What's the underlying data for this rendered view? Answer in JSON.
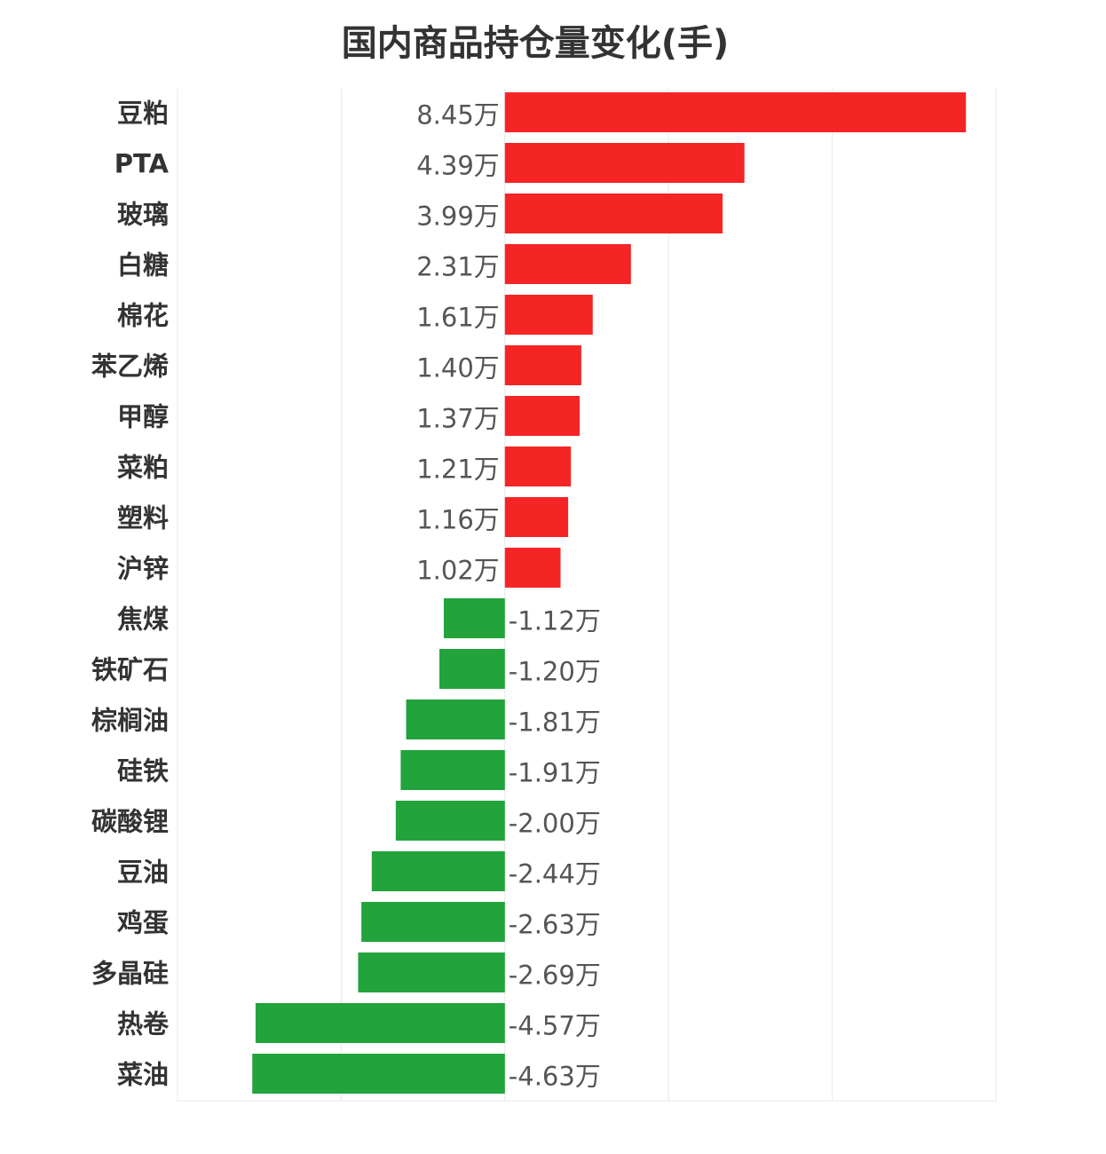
{
  "chart_data": {
    "type": "bar",
    "orientation": "horizontal",
    "title": "国内商品持仓量变化(手)",
    "unit": "万",
    "categories": [
      "豆粕",
      "PTA",
      "玻璃",
      "白糖",
      "棉花",
      "苯乙烯",
      "甲醇",
      "菜粕",
      "塑料",
      "沪锌",
      "焦煤",
      "铁矿石",
      "棕榈油",
      "硅铁",
      "碳酸锂",
      "豆油",
      "鸡蛋",
      "多晶硅",
      "热卷",
      "菜油"
    ],
    "values": [
      8.45,
      4.39,
      3.99,
      2.31,
      1.61,
      1.4,
      1.37,
      1.21,
      1.16,
      1.02,
      -1.12,
      -1.2,
      -1.81,
      -1.91,
      -2.0,
      -2.44,
      -2.63,
      -2.69,
      -4.57,
      -4.63
    ],
    "value_labels": [
      "8.45万",
      "4.39万",
      "3.99万",
      "2.31万",
      "1.61万",
      "1.40万",
      "1.37万",
      "1.21万",
      "1.16万",
      "1.02万",
      "-1.12万",
      "-1.20万",
      "-1.81万",
      "-1.91万",
      "-2.00万",
      "-2.44万",
      "-2.63万",
      "-2.69万",
      "-4.57万",
      "-4.63万"
    ],
    "xlim": [
      -6,
      9
    ],
    "grid": true,
    "colors": {
      "positive": "#f52525",
      "negative": "#22a33c"
    }
  }
}
